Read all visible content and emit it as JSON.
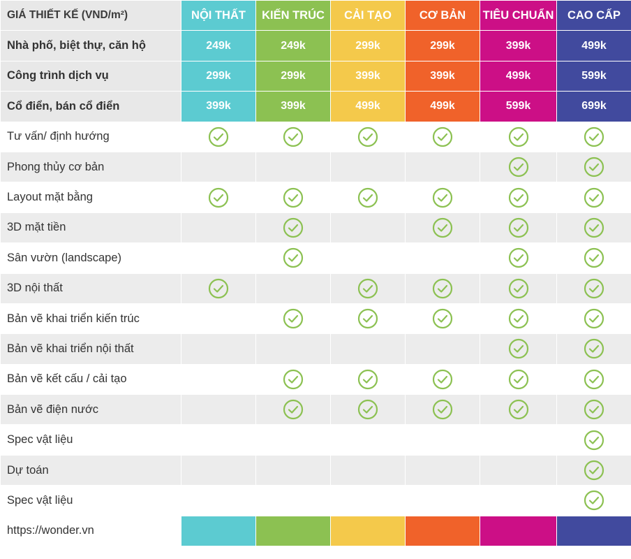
{
  "table": {
    "corner_label": "GIÁ THIẾT KẾ (VND/m²)",
    "plans": [
      {
        "name": "NỘI THẤT",
        "color": "#5ccbd1"
      },
      {
        "name": "KIẾN TRÚC",
        "color": "#8cc152"
      },
      {
        "name": "CẢI TẠO",
        "color": "#f4c94b"
      },
      {
        "name": "CƠ BẢN",
        "color": "#f0622a"
      },
      {
        "name": "TIÊU CHUẨN",
        "color": "#cc0f86"
      },
      {
        "name": "CAO CẤP",
        "color": "#414a9e"
      }
    ],
    "price_rows": [
      {
        "label": "Nhà phố, biệt thự, căn hộ",
        "prices": [
          "249k",
          "249k",
          "299k",
          "299k",
          "399k",
          "499k"
        ]
      },
      {
        "label": "Công trình dịch vụ",
        "prices": [
          "299k",
          "299k",
          "399k",
          "399k",
          "499k",
          "599k"
        ]
      },
      {
        "label": "Cổ điển, bán cổ điển",
        "prices": [
          "399k",
          "399k",
          "499k",
          "499k",
          "599k",
          "699k"
        ]
      }
    ],
    "feature_rows": [
      {
        "label": "Tư vấn/ định hướng",
        "included": [
          true,
          true,
          true,
          true,
          true,
          true
        ]
      },
      {
        "label": "Phong thủy cơ bản",
        "included": [
          false,
          false,
          false,
          false,
          true,
          true
        ]
      },
      {
        "label": "Layout mặt bằng",
        "included": [
          true,
          true,
          true,
          true,
          true,
          true
        ]
      },
      {
        "label": "3D mặt tiền",
        "included": [
          false,
          true,
          false,
          true,
          true,
          true
        ]
      },
      {
        "label": "Sân vườn (landscape)",
        "included": [
          false,
          true,
          false,
          false,
          true,
          true
        ]
      },
      {
        "label": "3D nội thất",
        "included": [
          true,
          false,
          true,
          true,
          true,
          true
        ]
      },
      {
        "label": "Bản vẽ khai triển kiến trúc",
        "included": [
          false,
          true,
          true,
          true,
          true,
          true
        ]
      },
      {
        "label": "Bản vẽ khai triển nội thất",
        "included": [
          false,
          false,
          false,
          false,
          true,
          true
        ]
      },
      {
        "label": "Bản vẽ kết cấu / cải tạo",
        "included": [
          false,
          true,
          true,
          true,
          true,
          true
        ]
      },
      {
        "label": "Bản vẽ điện nước",
        "included": [
          false,
          true,
          true,
          true,
          true,
          true
        ]
      },
      {
        "label": "Spec vật liệu",
        "included": [
          false,
          false,
          false,
          false,
          false,
          true
        ]
      },
      {
        "label": "Dự toán",
        "included": [
          false,
          false,
          false,
          false,
          false,
          true
        ]
      },
      {
        "label": "Spec vật liệu",
        "included": [
          false,
          false,
          false,
          false,
          false,
          true
        ]
      }
    ],
    "footer_label": "https://wonder.vn",
    "check_icon": "check-circle-icon",
    "check_color": "#8cc152"
  }
}
